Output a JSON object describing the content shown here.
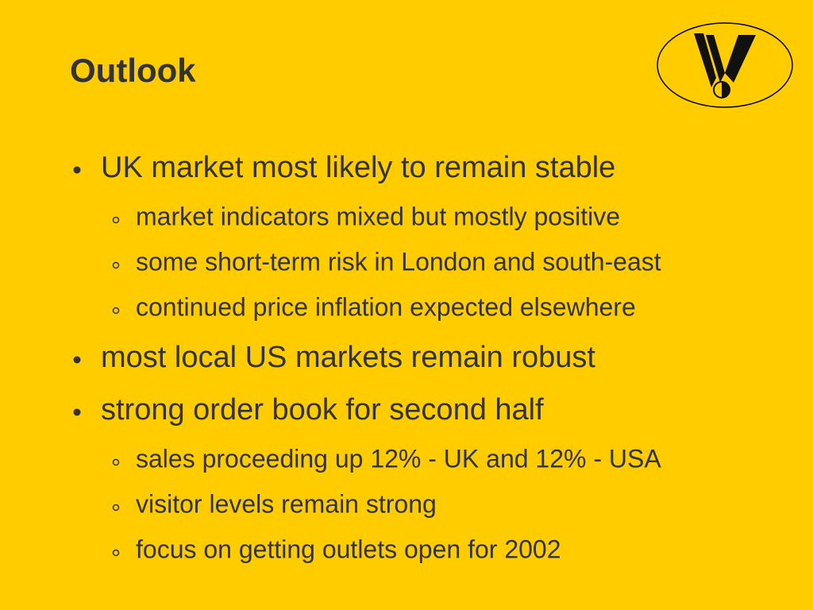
{
  "title": "Outlook",
  "bullets": [
    {
      "text": "UK market most likely to remain stable",
      "items": [
        "market indicators mixed but mostly positive",
        "some short-term risk in London and south-east",
        "continued price inflation expected elsewhere"
      ]
    },
    {
      "text": "most local US markets remain robust",
      "items": []
    },
    {
      "text": "strong order book for second half",
      "items": [
        "sales proceeding up 12% - UK and 12% - USA",
        "visitor levels remain strong",
        "focus on getting outlets open for 2002"
      ]
    }
  ]
}
